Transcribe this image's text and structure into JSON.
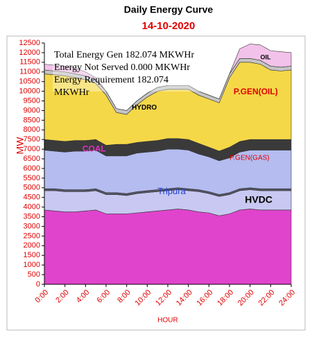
{
  "chart_data": {
    "type": "stacked-area",
    "title": "Daily Energy Curve",
    "subtitle": "14-10-2020",
    "x_label": "HOUR",
    "y_label": "MW",
    "x": [
      0,
      1,
      2,
      3,
      4,
      5,
      6,
      7,
      8,
      9,
      10,
      11,
      12,
      13,
      14,
      15,
      16,
      17,
      18,
      19,
      20,
      21,
      22,
      23,
      24
    ],
    "xlim": [
      0,
      24
    ],
    "xticks": [
      {
        "value": 0,
        "label": "0:00"
      },
      {
        "value": 2,
        "label": "2:00"
      },
      {
        "value": 4,
        "label": "4:00"
      },
      {
        "value": 6,
        "label": "6:00"
      },
      {
        "value": 8,
        "label": "8:00"
      },
      {
        "value": 10,
        "label": "10:00"
      },
      {
        "value": 12,
        "label": "12:00"
      },
      {
        "value": 14,
        "label": "14:00"
      },
      {
        "value": 16,
        "label": "16:00"
      },
      {
        "value": 18,
        "label": "18:00"
      },
      {
        "value": 20,
        "label": "20:00"
      },
      {
        "value": 22,
        "label": "22:00"
      },
      {
        "value": 24,
        "label": "24:00"
      }
    ],
    "ylim": [
      0,
      12500
    ],
    "yticks": [
      0,
      500,
      1000,
      1500,
      2000,
      2500,
      3000,
      3500,
      4000,
      4500,
      5000,
      5500,
      6000,
      6500,
      7000,
      7500,
      8000,
      8500,
      9000,
      9500,
      10000,
      10500,
      11000,
      11500,
      12000,
      12500
    ],
    "annotations": [
      "Total Energy Gen 182.074 MKWHr",
      "Energy Not Served  0.000 MKWHr",
      "Energy Requirement    182.074 MKWHr"
    ],
    "series": [
      {
        "color": "#e044cc",
        "values": [
          3850,
          3800,
          3750,
          3750,
          3800,
          3850,
          3650,
          3650,
          3650,
          3700,
          3750,
          3800,
          3850,
          3900,
          3850,
          3750,
          3700,
          3550,
          3650,
          3850,
          3900,
          3850,
          3850,
          3850,
          3850
        ]
      },
      {
        "name": "HVDC",
        "color": "#c8c8f2",
        "values": [
          1000,
          1050,
          1050,
          1050,
          1000,
          1000,
          1000,
          1000,
          950,
          1000,
          1000,
          1000,
          1000,
          1000,
          1000,
          1050,
          1000,
          1000,
          1000,
          1000,
          1000,
          1000,
          1000,
          1000,
          1000
        ]
      },
      {
        "name": "Tripura",
        "color": "#555566",
        "values": [
          100,
          100,
          100,
          100,
          100,
          100,
          100,
          100,
          100,
          100,
          100,
          100,
          100,
          100,
          100,
          100,
          100,
          100,
          100,
          100,
          100,
          100,
          100,
          100,
          100
        ]
      },
      {
        "name": "P.GEN(GAS)",
        "color": "#b4bcf0",
        "values": [
          2000,
          1950,
          1950,
          2000,
          2000,
          2000,
          1900,
          1900,
          1950,
          2000,
          2000,
          2000,
          2050,
          2000,
          2000,
          1850,
          1800,
          1750,
          1800,
          1900,
          1950,
          2000,
          2000,
          2000,
          2000
        ]
      },
      {
        "name": "COAL",
        "color": "#3a3a3a",
        "values": [
          550,
          550,
          550,
          550,
          550,
          550,
          550,
          600,
          600,
          550,
          550,
          550,
          550,
          550,
          550,
          550,
          500,
          500,
          550,
          550,
          550,
          550,
          550,
          550,
          550
        ]
      },
      {
        "name": "P.GEN(OIL)",
        "color": "#f5d848",
        "values": [
          3400,
          3400,
          3400,
          3250,
          3150,
          2900,
          2600,
          1650,
          1550,
          1950,
          2300,
          2550,
          2550,
          2550,
          2600,
          2500,
          2500,
          2500,
          3600,
          4100,
          4000,
          3900,
          3600,
          3550,
          3600
        ]
      },
      {
        "name": "HYDRO",
        "color": "#c4c4c4",
        "values": [
          200,
          200,
          200,
          200,
          200,
          200,
          200,
          200,
          200,
          200,
          200,
          200,
          200,
          200,
          200,
          200,
          200,
          200,
          200,
          200,
          200,
          200,
          200,
          200,
          200
        ]
      },
      {
        "name": "OIL",
        "color": "#f2c2ea",
        "values": [
          300,
          300,
          300,
          300,
          200,
          100,
          0,
          0,
          0,
          0,
          0,
          0,
          0,
          0,
          0,
          0,
          0,
          0,
          0,
          500,
          750,
          800,
          800,
          800,
          700
        ]
      }
    ]
  }
}
